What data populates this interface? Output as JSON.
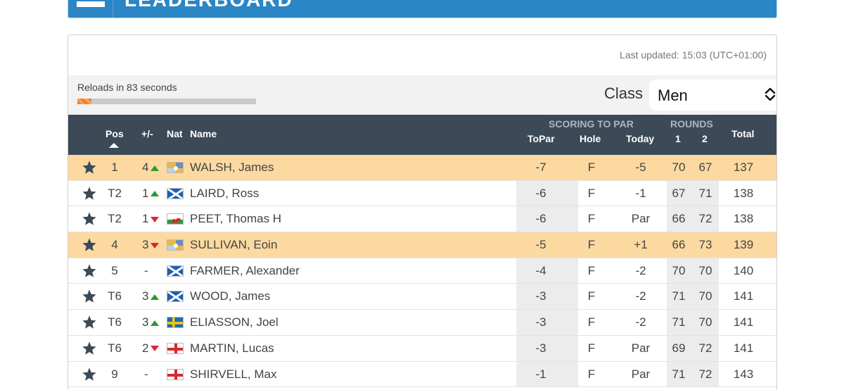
{
  "header": {
    "title": "LEADERBOARD"
  },
  "last_updated": "Last updated: 15:03 (UTC+01:00)",
  "reload": {
    "label": "Reloads in 83 seconds",
    "progress_fraction": 0.08
  },
  "class_filter": {
    "label": "Class",
    "selected": "Men"
  },
  "columns": {
    "pos": "Pos",
    "change": "+/-",
    "nat": "Nat",
    "name": "Name",
    "scoring_group": "SCORING TO PAR",
    "topar": "ToPar",
    "hole": "Hole",
    "today": "Today",
    "rounds_group": "ROUNDS",
    "r1": "1",
    "r2": "2",
    "total": "Total"
  },
  "rows": [
    {
      "pos": "1",
      "change": "4",
      "dir": "up",
      "nat": "irl",
      "name": "WALSH, James",
      "topar": "-7",
      "hole": "F",
      "today": "-5",
      "r1": "70",
      "r2": "67",
      "total": "137",
      "highlight": true
    },
    {
      "pos": "T2",
      "change": "1",
      "dir": "up",
      "nat": "sco",
      "name": "LAIRD, Ross",
      "topar": "-6",
      "hole": "F",
      "today": "-1",
      "r1": "67",
      "r2": "71",
      "total": "138",
      "highlight": false
    },
    {
      "pos": "T2",
      "change": "1",
      "dir": "down",
      "nat": "wal",
      "name": "PEET, Thomas H",
      "topar": "-6",
      "hole": "F",
      "today": "Par",
      "r1": "66",
      "r2": "72",
      "total": "138",
      "highlight": false
    },
    {
      "pos": "4",
      "change": "3",
      "dir": "down",
      "nat": "irl",
      "name": "SULLIVAN, Eoin",
      "topar": "-5",
      "hole": "F",
      "today": "+1",
      "r1": "66",
      "r2": "73",
      "total": "139",
      "highlight": true
    },
    {
      "pos": "5",
      "change": "-",
      "dir": "none",
      "nat": "sco",
      "name": "FARMER, Alexander",
      "topar": "-4",
      "hole": "F",
      "today": "-2",
      "r1": "70",
      "r2": "70",
      "total": "140",
      "highlight": false
    },
    {
      "pos": "T6",
      "change": "3",
      "dir": "up",
      "nat": "sco",
      "name": "WOOD, James",
      "topar": "-3",
      "hole": "F",
      "today": "-2",
      "r1": "71",
      "r2": "70",
      "total": "141",
      "highlight": false
    },
    {
      "pos": "T6",
      "change": "3",
      "dir": "up",
      "nat": "swe",
      "name": "ELIASSON, Joel",
      "topar": "-3",
      "hole": "F",
      "today": "-2",
      "r1": "71",
      "r2": "70",
      "total": "141",
      "highlight": false
    },
    {
      "pos": "T6",
      "change": "2",
      "dir": "down",
      "nat": "eng",
      "name": "MARTIN, Lucas",
      "topar": "-3",
      "hole": "F",
      "today": "Par",
      "r1": "69",
      "r2": "72",
      "total": "141",
      "highlight": false
    },
    {
      "pos": "9",
      "change": "-",
      "dir": "none",
      "nat": "eng",
      "name": "SHIRVELL, Max",
      "topar": "-1",
      "hole": "F",
      "today": "Par",
      "r1": "71",
      "r2": "72",
      "total": "143",
      "highlight": false
    }
  ],
  "colors": {
    "header_bar": "#2b86c5",
    "table_head": "#3c4a57",
    "highlight_row": "#fcd9a0",
    "up": "#2e9a2e",
    "down": "#d9282f",
    "star": "#3c4a57"
  }
}
